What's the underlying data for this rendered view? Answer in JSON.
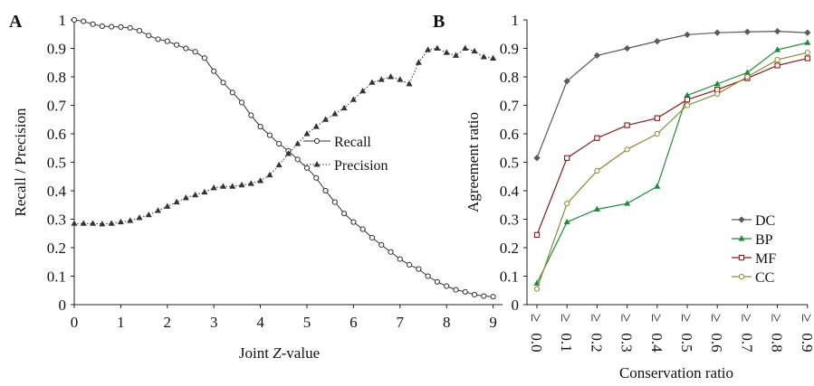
{
  "chart_data": [
    {
      "type": "line",
      "panel_label": "A",
      "xlabel_parts": [
        "Joint ",
        "Z",
        "-value"
      ],
      "ylabel": "Recall / Precision",
      "xlim": [
        0,
        9.2
      ],
      "ylim": [
        0,
        1
      ],
      "x_ticks": [
        "0",
        "1",
        "2",
        "3",
        "4",
        "5",
        "6",
        "7",
        "8",
        "9"
      ],
      "y_ticks": [
        "0",
        "0.1",
        "0.2",
        "0.3",
        "0.4",
        "0.5",
        "0.6",
        "0.7",
        "0.8",
        "0.9",
        "1"
      ],
      "grid": false,
      "legend_position": "right-center",
      "series": [
        {
          "name": "Recall",
          "marker": "circle",
          "line": "solid",
          "color": "#333333",
          "x": [
            0,
            0.2,
            0.4,
            0.6,
            0.8,
            1.0,
            1.2,
            1.4,
            1.6,
            1.8,
            2.0,
            2.2,
            2.4,
            2.6,
            2.8,
            3.0,
            3.2,
            3.4,
            3.6,
            3.8,
            4.0,
            4.2,
            4.4,
            4.6,
            4.8,
            5.0,
            5.2,
            5.4,
            5.6,
            5.8,
            6.0,
            6.2,
            6.4,
            6.6,
            6.8,
            7.0,
            7.2,
            7.4,
            7.6,
            7.8,
            8.0,
            8.2,
            8.4,
            8.6,
            8.8,
            9.0
          ],
          "y": [
            1.0,
            0.995,
            0.985,
            0.978,
            0.976,
            0.975,
            0.972,
            0.962,
            0.945,
            0.932,
            0.925,
            0.912,
            0.9,
            0.888,
            0.866,
            0.82,
            0.78,
            0.745,
            0.71,
            0.665,
            0.625,
            0.595,
            0.565,
            0.54,
            0.51,
            0.48,
            0.445,
            0.4,
            0.36,
            0.32,
            0.29,
            0.265,
            0.235,
            0.21,
            0.185,
            0.16,
            0.14,
            0.125,
            0.1,
            0.08,
            0.065,
            0.052,
            0.045,
            0.035,
            0.03,
            0.028
          ]
        },
        {
          "name": "Precision",
          "marker": "triangle",
          "line": "dotted",
          "color": "#333333",
          "x": [
            0,
            0.2,
            0.4,
            0.6,
            0.8,
            1.0,
            1.2,
            1.4,
            1.6,
            1.8,
            2.0,
            2.2,
            2.4,
            2.6,
            2.8,
            3.0,
            3.2,
            3.4,
            3.6,
            3.8,
            4.0,
            4.2,
            4.4,
            4.6,
            4.8,
            5.0,
            5.2,
            5.4,
            5.6,
            5.8,
            6.0,
            6.2,
            6.4,
            6.6,
            6.8,
            7.0,
            7.2,
            7.4,
            7.6,
            7.8,
            8.0,
            8.2,
            8.4,
            8.6,
            8.8,
            9.0
          ],
          "y": [
            0.285,
            0.285,
            0.285,
            0.283,
            0.285,
            0.29,
            0.295,
            0.305,
            0.315,
            0.33,
            0.345,
            0.36,
            0.375,
            0.385,
            0.395,
            0.41,
            0.415,
            0.415,
            0.42,
            0.425,
            0.435,
            0.455,
            0.49,
            0.53,
            0.565,
            0.6,
            0.625,
            0.65,
            0.67,
            0.69,
            0.72,
            0.75,
            0.78,
            0.79,
            0.8,
            0.79,
            0.775,
            0.85,
            0.895,
            0.9,
            0.885,
            0.875,
            0.9,
            0.89,
            0.87,
            0.865
          ]
        }
      ]
    },
    {
      "type": "line",
      "panel_label": "B",
      "xlabel": "Conservation ratio",
      "ylabel": "Agreement ratio",
      "categories": [
        "≥ 0.0",
        "≥ 0.1",
        "≥ 0.2",
        "≥ 0.3",
        "≥ 0.4",
        "≥ 0.5",
        "≥ 0.6",
        "≥ 0.7",
        "≥ 0.8",
        "≥ 0.9"
      ],
      "tick_labels": [
        {
          "symbol": "≥",
          "value": "0.0"
        },
        {
          "symbol": "≥",
          "value": "0.1"
        },
        {
          "symbol": "≥",
          "value": "0.2"
        },
        {
          "symbol": "≥",
          "value": "0.3"
        },
        {
          "symbol": "≥",
          "value": "0.4"
        },
        {
          "symbol": "≥",
          "value": "0.5"
        },
        {
          "symbol": "≥",
          "value": "0.6"
        },
        {
          "symbol": "≥",
          "value": "0.7"
        },
        {
          "symbol": "≥",
          "value": "0.8"
        },
        {
          "symbol": "≥",
          "value": "0.9"
        }
      ],
      "ylim": [
        0,
        1
      ],
      "y_ticks": [
        "0",
        "0.1",
        "0.2",
        "0.3",
        "0.4",
        "0.5",
        "0.6",
        "0.7",
        "0.8",
        "0.9",
        "1"
      ],
      "grid": false,
      "legend_position": "bottom-right",
      "series": [
        {
          "name": "DC",
          "marker": "diamond",
          "color": "#5a5a5a",
          "values": [
            0.515,
            0.785,
            0.875,
            0.9,
            0.925,
            0.948,
            0.955,
            0.958,
            0.96,
            0.955
          ]
        },
        {
          "name": "BP",
          "marker": "triangle",
          "color": "#1f8a3a",
          "values": [
            0.075,
            0.29,
            0.335,
            0.355,
            0.415,
            0.735,
            0.775,
            0.815,
            0.895,
            0.92
          ]
        },
        {
          "name": "MF",
          "marker": "square",
          "color": "#8b1a1a",
          "values": [
            0.245,
            0.515,
            0.585,
            0.63,
            0.655,
            0.72,
            0.755,
            0.795,
            0.84,
            0.865
          ]
        },
        {
          "name": "CC",
          "marker": "circle",
          "color": "#8f8a3a",
          "values": [
            0.055,
            0.355,
            0.47,
            0.545,
            0.6,
            0.7,
            0.74,
            0.8,
            0.86,
            0.885
          ]
        }
      ]
    }
  ]
}
